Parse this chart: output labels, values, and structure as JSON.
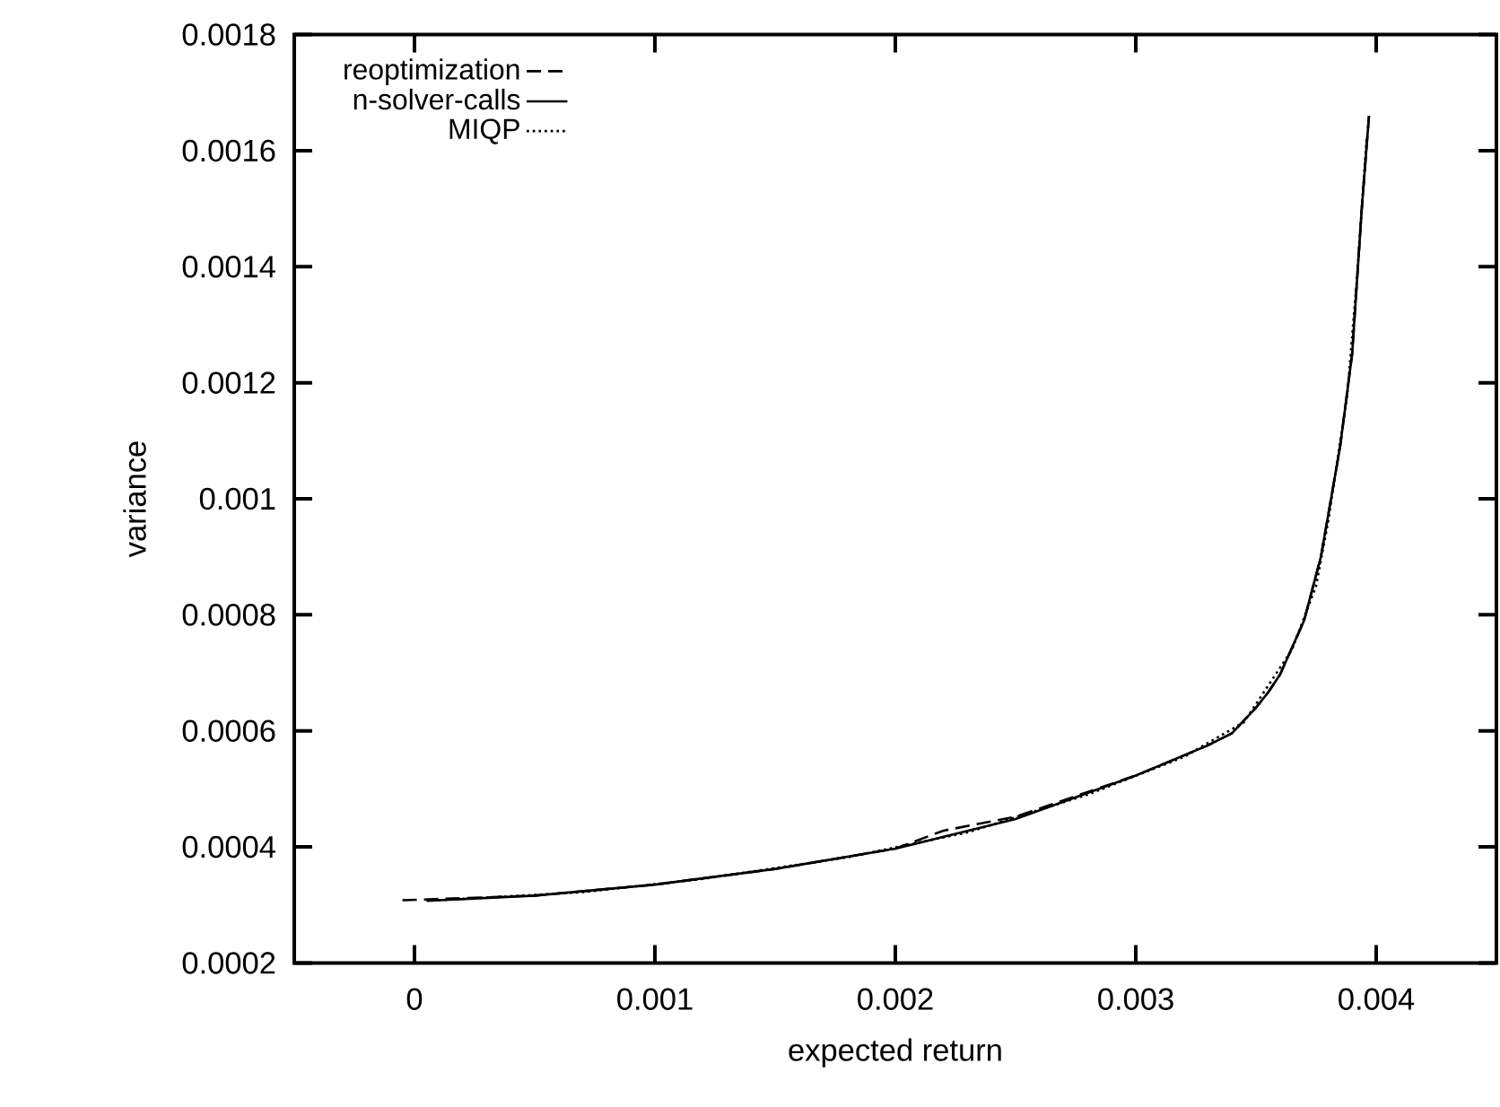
{
  "chart_data": {
    "type": "line",
    "xlabel": "expected return",
    "ylabel": "variance",
    "xlim": [
      -0.0005,
      0.0045
    ],
    "ylim": [
      0.0002,
      0.0018
    ],
    "xticks": [
      0,
      0.001,
      0.002,
      0.003,
      0.004
    ],
    "yticks": [
      0.0002,
      0.0004,
      0.0006,
      0.0008,
      0.001,
      0.0012,
      0.0014,
      0.0016,
      0.0018
    ],
    "legend": "top left",
    "series": [
      {
        "name": "reoptimization",
        "color": "#000000",
        "line_style": "dashed",
        "x": [
          -5e-05,
          0.0005,
          0.001,
          0.0015,
          0.002,
          0.0022,
          0.0025,
          0.003,
          0.0033,
          0.0034,
          0.0035,
          0.00355,
          0.0036,
          0.0037,
          0.00377,
          0.00385,
          0.0039,
          0.00394,
          0.00397
        ],
        "values": [
          0.000308,
          0.000316,
          0.000335,
          0.000362,
          0.000397,
          0.000428,
          0.000452,
          0.000523,
          0.000575,
          0.000596,
          0.00064,
          0.000666,
          0.000697,
          0.00079,
          0.0009,
          0.00109,
          0.00125,
          0.0015,
          0.00166
        ]
      },
      {
        "name": "n-solver-calls",
        "color": "#000000",
        "line_style": "solid",
        "x": [
          5e-05,
          0.0005,
          0.001,
          0.0015,
          0.002,
          0.0025,
          0.003,
          0.0033,
          0.0034,
          0.0035,
          0.00355,
          0.0036,
          0.0037,
          0.00377,
          0.00385,
          0.0039,
          0.00394,
          0.00397
        ],
        "values": [
          0.000307,
          0.000316,
          0.000335,
          0.000362,
          0.000397,
          0.000448,
          0.000523,
          0.000575,
          0.000596,
          0.00064,
          0.000666,
          0.000697,
          0.00079,
          0.0009,
          0.00109,
          0.00125,
          0.0015,
          0.00166
        ]
      },
      {
        "name": "MIQP",
        "color": "#000000",
        "line_style": "dotted",
        "x": [
          0.0001,
          0.0007,
          0.0012,
          0.0018,
          0.0023,
          0.0028,
          0.0032,
          0.00345,
          0.00365,
          0.00375,
          0.0038,
          0.00388,
          0.00392,
          0.00396
        ],
        "values": [
          0.000308,
          0.000322,
          0.000345,
          0.000382,
          0.000425,
          0.00049,
          0.000555,
          0.000615,
          0.00074,
          0.00085,
          0.00096,
          0.00118,
          0.00138,
          0.00162
        ]
      }
    ]
  }
}
